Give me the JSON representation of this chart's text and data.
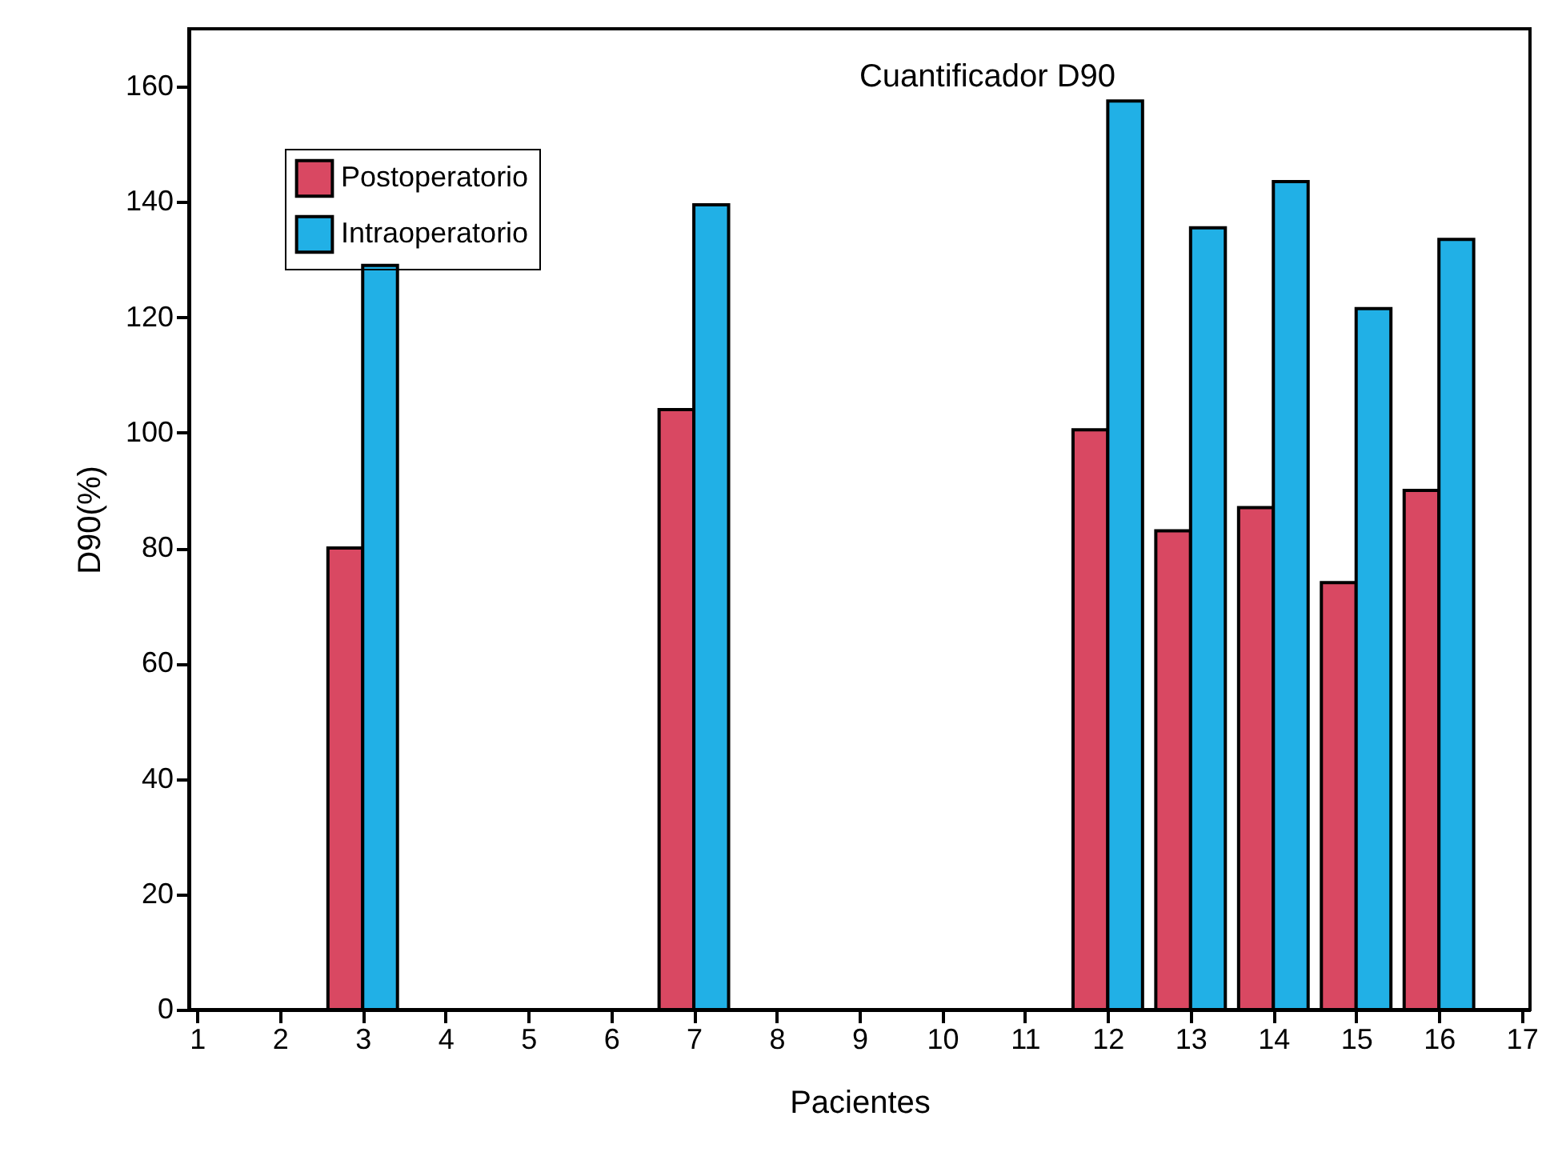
{
  "chart_data": {
    "type": "bar",
    "title": "Cuantificador D90",
    "xlabel": "Pacientes",
    "ylabel": "D90(%)",
    "x": [
      3,
      7,
      12,
      13,
      14,
      15,
      16
    ],
    "series": [
      {
        "name": "Postoperatorio",
        "color": "#d94862",
        "values": [
          80,
          104,
          100.5,
          83,
          87,
          74,
          90
        ]
      },
      {
        "name": "Intraoperatorio",
        "color": "#21b0e6",
        "values": [
          129,
          139.5,
          157.5,
          135.5,
          143.5,
          121.5,
          133.5
        ]
      }
    ],
    "xlim": [
      0.9,
      17.1
    ],
    "xticks": [
      1,
      2,
      3,
      4,
      5,
      6,
      7,
      8,
      9,
      10,
      11,
      12,
      13,
      14,
      15,
      16,
      17
    ],
    "ylim": [
      0,
      170
    ],
    "yticks": [
      0,
      20,
      40,
      60,
      80,
      100,
      120,
      140,
      160
    ],
    "grid": false,
    "legend": "top left"
  }
}
